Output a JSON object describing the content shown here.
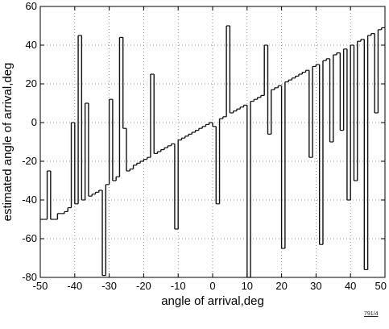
{
  "figure_id": "791/4",
  "chart_data": {
    "type": "line",
    "title": "",
    "xlabel": "angle of arrival,deg",
    "ylabel": "estimated angle of arrival,deg",
    "xlim": [
      -50,
      50
    ],
    "ylim": [
      -80,
      60
    ],
    "xticks": [
      -50,
      -40,
      -30,
      -20,
      -10,
      0,
      10,
      20,
      30,
      40,
      50
    ],
    "yticks": [
      -80,
      -60,
      -40,
      -20,
      0,
      20,
      40,
      60
    ],
    "grid": true,
    "x": [
      -49.5,
      -48.5,
      -47.5,
      -46.5,
      -45.5,
      -44.5,
      -43.5,
      -42.5,
      -41.5,
      -40.5,
      -39.5,
      -38.5,
      -37.5,
      -36.5,
      -35.5,
      -34.5,
      -33.5,
      -32.5,
      -31.5,
      -30.5,
      -29.5,
      -28.5,
      -27.5,
      -26.5,
      -25.5,
      -24.5,
      -23.5,
      -22.5,
      -21.5,
      -20.5,
      -19.5,
      -18.5,
      -17.5,
      -16.5,
      -15.5,
      -14.5,
      -13.5,
      -12.5,
      -11.5,
      -10.5,
      -9.5,
      -8.5,
      -7.5,
      -6.5,
      -5.5,
      -4.5,
      -3.5,
      -2.5,
      -1.5,
      -0.5,
      0.5,
      1.5,
      2.5,
      3.5,
      4.5,
      5.5,
      6.5,
      7.5,
      8.5,
      9.5,
      10.5,
      11.5,
      12.5,
      13.5,
      14.5,
      15.5,
      16.5,
      17.5,
      18.5,
      19.5,
      20.5,
      21.5,
      22.5,
      23.5,
      24.5,
      25.5,
      26.5,
      27.5,
      28.5,
      29.5,
      30.5,
      31.5,
      32.5,
      33.5,
      34.5,
      35.5,
      36.5,
      37.5,
      38.5,
      39.5,
      40.5,
      41.5,
      42.5,
      43.5,
      44.5,
      45.5,
      46.5,
      47.5,
      48.5,
      49.5
    ],
    "series": [
      {
        "values": [
          -50,
          -50,
          -25,
          -50,
          -50,
          -47,
          -47,
          -46,
          -44,
          0,
          -42,
          45,
          -40,
          10,
          -38,
          -37,
          -36,
          -35,
          -79,
          -32,
          12,
          -30,
          -28,
          44,
          -3,
          -25,
          -24,
          -22,
          -21,
          -20,
          -19,
          -18,
          25,
          -16,
          -15,
          -14,
          -13,
          -12,
          -11,
          -55,
          -9,
          -8,
          -7,
          -6,
          -5,
          -4,
          -3,
          -2,
          -1,
          0,
          -2,
          -42,
          2,
          3,
          50,
          5,
          6,
          7,
          8,
          9,
          -80,
          11,
          12,
          13,
          14,
          40,
          -6,
          17,
          18,
          19,
          -65,
          21,
          22,
          23,
          24,
          25,
          26,
          27,
          -18,
          29,
          30,
          -63,
          32,
          33,
          -10,
          35,
          36,
          -4,
          38,
          -40,
          40,
          -30,
          42,
          43,
          -76,
          45,
          46,
          5,
          48,
          49
        ],
        "color": "#111111"
      }
    ]
  }
}
